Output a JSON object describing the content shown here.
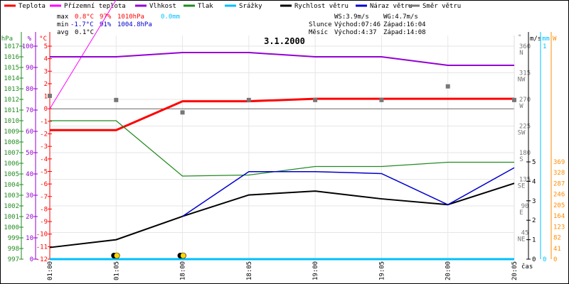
{
  "chart_data": {
    "type": "line",
    "title": "3.1.2000",
    "xlabel": "čas",
    "categories": [
      "01:00",
      "01:05",
      "18:00",
      "18:05",
      "19:00",
      "19:05",
      "20:00",
      "20:05"
    ],
    "legend": [
      {
        "name": "Teplota",
        "color": "#ff0000"
      },
      {
        "name": "Přízemní teplota",
        "color": "#ff00ff"
      },
      {
        "name": "Vlhkost",
        "color": "#9400d3"
      },
      {
        "name": "Tlak",
        "color": "#228b22"
      },
      {
        "name": "Srážky",
        "color": "#00bfff"
      },
      {
        "name": "Rychlost větru",
        "color": "#000000"
      },
      {
        "name": "Náraz větru",
        "color": "#0000cd"
      },
      {
        "name": "Směr větru",
        "color": "#777777"
      }
    ],
    "axes": {
      "hPa": {
        "label": "hPa",
        "range": [
          997,
          1017
        ],
        "ticks": [
          1017,
          1016,
          1015,
          1014,
          1013,
          1012,
          1011,
          1010,
          1009,
          1008,
          1007,
          1006,
          1005,
          1004,
          1003,
          1002,
          1001,
          1000,
          999,
          998,
          997
        ],
        "color": "#228b22"
      },
      "pct": {
        "label": "%",
        "range": [
          0,
          100
        ],
        "ticks": [
          100,
          90,
          80,
          70,
          60,
          50,
          40,
          30,
          20,
          10,
          0
        ],
        "color": "#9400d3"
      },
      "temp": {
        "label": "°C",
        "range": [
          -12,
          5
        ],
        "ticks": [
          5,
          4,
          3,
          2,
          1,
          0,
          -1,
          -2,
          -3,
          -4,
          -5,
          -6,
          -7,
          -8,
          -9,
          -10,
          -11,
          -12
        ],
        "color": "#ff0000"
      },
      "dir": {
        "label": "°",
        "range": [
          0,
          360
        ],
        "ticks": [
          {
            "v": 360,
            "l": "N"
          },
          {
            "v": 315,
            "l": "NW"
          },
          {
            "v": 270,
            "l": "W"
          },
          {
            "v": 225,
            "l": "SW"
          },
          {
            "v": 180,
            "l": "S"
          },
          {
            "v": 135,
            "l": "SE"
          },
          {
            "v": 90,
            "l": "E"
          },
          {
            "v": 45,
            "l": "NE"
          }
        ],
        "color": "#777777"
      },
      "ms": {
        "label": "m/s",
        "range": [
          0,
          5
        ],
        "ticks": [
          5,
          4,
          3,
          2,
          1,
          0
        ],
        "color": "#000000"
      },
      "mm": {
        "label": "mm",
        "ticks": [
          1,
          0
        ],
        "color": "#00bfff"
      },
      "w": {
        "label": "W",
        "ticks": [
          369,
          328,
          287,
          246,
          205,
          164,
          123,
          82,
          41,
          0
        ],
        "color": "#ff8c00"
      }
    },
    "series": [
      {
        "name": "Teplota",
        "axis": "temp",
        "color": "#ff0000",
        "values": [
          -1.7,
          -1.7,
          0.6,
          0.6,
          0.8,
          0.8,
          0.8,
          0.8
        ]
      },
      {
        "name": "Přízemní teplota",
        "axis": "temp",
        "color": "#ff00ff",
        "values": [
          0.0,
          8.7,
          null,
          null,
          null,
          null,
          null,
          null
        ]
      },
      {
        "name": "Vlhkost",
        "axis": "pct",
        "color": "#9400d3",
        "values": [
          95,
          95,
          97,
          97,
          95,
          95,
          91,
          91
        ]
      },
      {
        "name": "Tlak",
        "axis": "hPa",
        "color": "#228b22",
        "values": [
          1010.0,
          1010.0,
          1004.8,
          1004.9,
          1005.7,
          1005.7,
          1006.1,
          1006.1
        ]
      },
      {
        "name": "Srážky",
        "axis": "mm",
        "color": "#00bfff",
        "values": [
          0,
          0,
          0,
          0,
          0,
          0,
          0,
          0
        ]
      },
      {
        "name": "Rychlost větru",
        "axis": "ms",
        "color": "#000000",
        "values": [
          0.6,
          1.0,
          2.2,
          3.3,
          3.5,
          3.1,
          2.8,
          3.9
        ]
      },
      {
        "name": "Náraz větru",
        "axis": "ms",
        "color": "#0000cd",
        "values": [
          null,
          null,
          2.2,
          4.5,
          4.5,
          4.4,
          2.8,
          4.7
        ]
      },
      {
        "name": "Směr větru",
        "axis": "dir",
        "color": "#777777",
        "values": [
          276,
          269,
          248,
          269,
          269,
          269,
          292,
          269
        ]
      }
    ]
  },
  "stats": {
    "max_label": "max",
    "min_label": "min",
    "avg_label": "avg",
    "max_temp": "0.8°C",
    "max_hum": "97%",
    "max_press": "1010hPa",
    "max_rain": "0.0mm",
    "min_temp": "-1.7°C",
    "min_hum": "91%",
    "min_press": "1004.8hPa",
    "avg_temp": "0.1°C"
  },
  "astro": {
    "ws": "WS:3.9m/s",
    "wg": "WG:4.7m/s",
    "sun_label": "Slunce",
    "sun_rise": "Východ:07:46",
    "sun_set": "Západ:16:04",
    "moon_label": "Měsíc",
    "moon_rise": "Východ:4:37",
    "moon_set": "Západ:14:08"
  }
}
